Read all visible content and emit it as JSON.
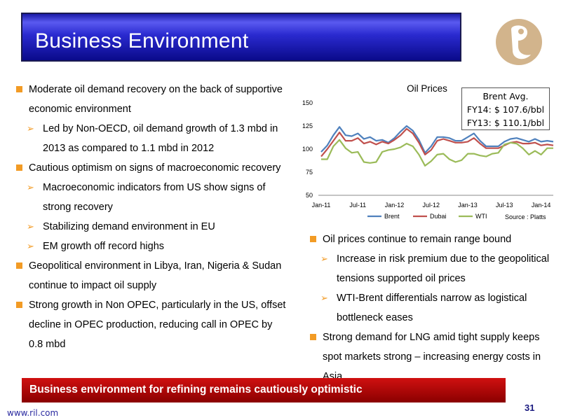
{
  "header": {
    "title": "Business Environment"
  },
  "left_bullets": [
    {
      "text": "Moderate oil demand recovery on the back of supportive economic environment",
      "subs": [
        "Led by Non-OECD, oil demand growth of 1.3 mbd in 2013 as compared to 1.1 mbd in 2012"
      ]
    },
    {
      "text": "Cautious optimism on signs of macroeconomic recovery",
      "subs": [
        "Macroeconomic indicators from US show signs of strong recovery",
        "Stabilizing demand environment in EU",
        "EM growth off record highs"
      ]
    },
    {
      "text": "Geopolitical environment in Libya, Iran, Nigeria & Sudan continue to impact oil supply",
      "subs": []
    },
    {
      "text": "Strong growth in Non OPEC, particularly in the US, offset decline in OPEC production, reducing call in OPEC by 0.8 mbd",
      "subs": []
    }
  ],
  "right_bullets": [
    {
      "text": "Oil prices continue to remain range bound",
      "subs": [
        "Increase in risk premium due to the geopolitical tensions supported oil prices",
        "WTI-Brent differentials narrow as logistical bottleneck eases"
      ]
    },
    {
      "text": "Strong demand for LNG amid tight supply keeps spot markets strong – increasing energy costs in Asia",
      "subs": []
    }
  ],
  "brent_box": {
    "line1": "Brent Avg.",
    "line2": "FY14: $ 107.6/bbl",
    "line3": "FY13: $ 110.1/bbl"
  },
  "source": "Source : Platts",
  "bottom_banner": "Business environment for refining remains cautiously optimistic",
  "footer": {
    "url": "www.ril.com",
    "page": "31"
  },
  "colors": {
    "brent": "#4f81bd",
    "dubai": "#c0504d",
    "wti": "#9bbb59",
    "bullet": "#f29b25"
  },
  "chart_data": {
    "type": "line",
    "title": "Oil Prices",
    "xlabel": "",
    "ylabel": "",
    "ylim": [
      50,
      150
    ],
    "yticks": [
      50,
      75,
      100,
      125,
      150
    ],
    "x_tick_labels": [
      "Jan-11",
      "Jul-11",
      "Jan-12",
      "Jul-12",
      "Jan-13",
      "Jul-13",
      "Jan-14"
    ],
    "x_tick_index": [
      0,
      6,
      12,
      18,
      24,
      30,
      36
    ],
    "x": [
      "Jan-11",
      "Feb-11",
      "Mar-11",
      "Apr-11",
      "May-11",
      "Jun-11",
      "Jul-11",
      "Aug-11",
      "Sep-11",
      "Oct-11",
      "Nov-11",
      "Dec-11",
      "Jan-12",
      "Feb-12",
      "Mar-12",
      "Apr-12",
      "May-12",
      "Jun-12",
      "Jul-12",
      "Aug-12",
      "Sep-12",
      "Oct-12",
      "Nov-12",
      "Dec-12",
      "Jan-13",
      "Feb-13",
      "Mar-13",
      "Apr-13",
      "May-13",
      "Jun-13",
      "Jul-13",
      "Aug-13",
      "Sep-13",
      "Oct-13",
      "Nov-13",
      "Dec-13",
      "Jan-14",
      "Feb-14",
      "Mar-14"
    ],
    "legend_position": "bottom",
    "series": [
      {
        "name": "Brent",
        "values": [
          97,
          104,
          115,
          124,
          115,
          114,
          117,
          111,
          113,
          109,
          110,
          107,
          112,
          119,
          125,
          120,
          110,
          96,
          103,
          113,
          113,
          112,
          109,
          109,
          113,
          117,
          109,
          103,
          103,
          103,
          108,
          111,
          112,
          110,
          108,
          111,
          108,
          109,
          108
        ]
      },
      {
        "name": "Dubai",
        "values": [
          92,
          100,
          109,
          118,
          109,
          109,
          112,
          106,
          108,
          105,
          108,
          106,
          110,
          115,
          122,
          117,
          107,
          94,
          99,
          109,
          111,
          109,
          107,
          107,
          108,
          112,
          106,
          101,
          101,
          101,
          104,
          107,
          108,
          106,
          106,
          107,
          104,
          105,
          104
        ]
      },
      {
        "name": "WTI",
        "values": [
          89,
          89,
          103,
          110,
          101,
          96,
          97,
          86,
          85,
          86,
          97,
          99,
          100,
          102,
          106,
          103,
          94,
          82,
          87,
          94,
          95,
          89,
          86,
          88,
          95,
          95,
          93,
          92,
          95,
          96,
          105,
          107,
          106,
          101,
          94,
          98,
          94,
          101,
          101
        ]
      }
    ]
  }
}
